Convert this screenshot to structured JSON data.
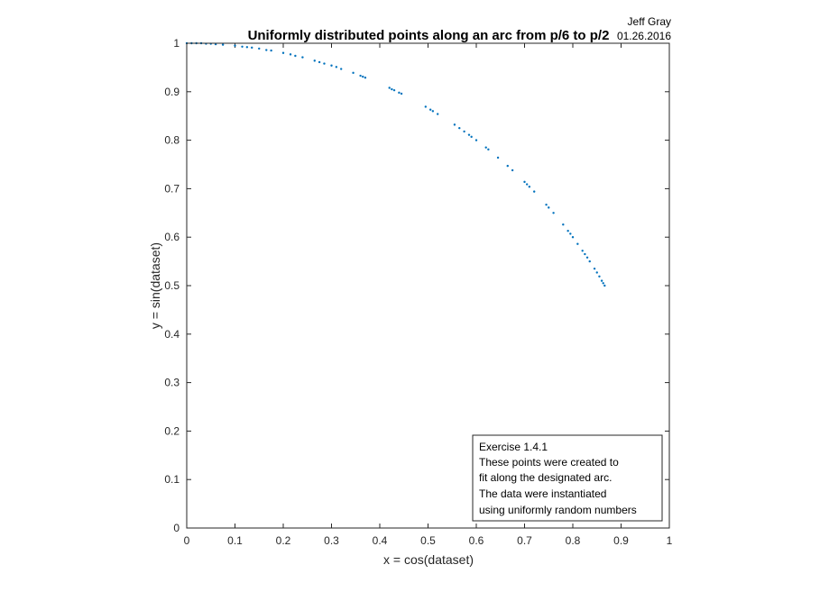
{
  "chart_data": {
    "type": "scatter",
    "title": "Uniformly distributed points along an arc from p/6 to p/2",
    "author": "Jeff Gray",
    "date": "01.26.2016",
    "xlabel": "x = cos(dataset)",
    "ylabel": "y = sin(dataset)",
    "xlim": [
      0,
      1
    ],
    "ylim": [
      0,
      1
    ],
    "xticks": [
      "0",
      "0.1",
      "0.2",
      "0.3",
      "0.4",
      "0.5",
      "0.6",
      "0.7",
      "0.8",
      "0.9",
      "1"
    ],
    "yticks": [
      "0",
      "0.1",
      "0.2",
      "0.3",
      "0.4",
      "0.5",
      "0.6",
      "0.7",
      "0.8",
      "0.9",
      "1"
    ],
    "grid": false,
    "marker_color": "#0072BD",
    "annotation_position": "bottom-right",
    "annotation": [
      "Exercise 1.4.1",
      "These points were created to",
      "fit along the designated arc.",
      "The data were instantiated",
      "using uniformly random numbers"
    ],
    "points": [
      {
        "x": 0.0,
        "y": 1.0
      },
      {
        "x": 0.01,
        "y": 1.0
      },
      {
        "x": 0.02,
        "y": 1.0
      },
      {
        "x": 0.03,
        "y": 1.0
      },
      {
        "x": 0.04,
        "y": 0.999
      },
      {
        "x": 0.05,
        "y": 0.999
      },
      {
        "x": 0.06,
        "y": 0.998
      },
      {
        "x": 0.075,
        "y": 0.997
      },
      {
        "x": 0.1,
        "y": 0.995
      },
      {
        "x": 0.115,
        "y": 0.993
      },
      {
        "x": 0.125,
        "y": 0.992
      },
      {
        "x": 0.135,
        "y": 0.991
      },
      {
        "x": 0.15,
        "y": 0.989
      },
      {
        "x": 0.165,
        "y": 0.986
      },
      {
        "x": 0.175,
        "y": 0.985
      },
      {
        "x": 0.2,
        "y": 0.98
      },
      {
        "x": 0.215,
        "y": 0.977
      },
      {
        "x": 0.225,
        "y": 0.974
      },
      {
        "x": 0.24,
        "y": 0.971
      },
      {
        "x": 0.265,
        "y": 0.964
      },
      {
        "x": 0.275,
        "y": 0.961
      },
      {
        "x": 0.285,
        "y": 0.958
      },
      {
        "x": 0.3,
        "y": 0.954
      },
      {
        "x": 0.31,
        "y": 0.951
      },
      {
        "x": 0.32,
        "y": 0.947
      },
      {
        "x": 0.345,
        "y": 0.939
      },
      {
        "x": 0.36,
        "y": 0.933
      },
      {
        "x": 0.365,
        "y": 0.931
      },
      {
        "x": 0.37,
        "y": 0.929
      },
      {
        "x": 0.42,
        "y": 0.908
      },
      {
        "x": 0.425,
        "y": 0.905
      },
      {
        "x": 0.43,
        "y": 0.903
      },
      {
        "x": 0.44,
        "y": 0.898
      },
      {
        "x": 0.445,
        "y": 0.896
      },
      {
        "x": 0.495,
        "y": 0.869
      },
      {
        "x": 0.505,
        "y": 0.863
      },
      {
        "x": 0.51,
        "y": 0.86
      },
      {
        "x": 0.52,
        "y": 0.854
      },
      {
        "x": 0.555,
        "y": 0.832
      },
      {
        "x": 0.565,
        "y": 0.825
      },
      {
        "x": 0.575,
        "y": 0.818
      },
      {
        "x": 0.585,
        "y": 0.811
      },
      {
        "x": 0.59,
        "y": 0.807
      },
      {
        "x": 0.6,
        "y": 0.8
      },
      {
        "x": 0.62,
        "y": 0.785
      },
      {
        "x": 0.625,
        "y": 0.781
      },
      {
        "x": 0.645,
        "y": 0.764
      },
      {
        "x": 0.665,
        "y": 0.747
      },
      {
        "x": 0.675,
        "y": 0.738
      },
      {
        "x": 0.7,
        "y": 0.714
      },
      {
        "x": 0.705,
        "y": 0.709
      },
      {
        "x": 0.71,
        "y": 0.704
      },
      {
        "x": 0.72,
        "y": 0.694
      },
      {
        "x": 0.745,
        "y": 0.667
      },
      {
        "x": 0.75,
        "y": 0.661
      },
      {
        "x": 0.76,
        "y": 0.65
      },
      {
        "x": 0.78,
        "y": 0.626
      },
      {
        "x": 0.79,
        "y": 0.613
      },
      {
        "x": 0.795,
        "y": 0.607
      },
      {
        "x": 0.8,
        "y": 0.6
      },
      {
        "x": 0.81,
        "y": 0.586
      },
      {
        "x": 0.82,
        "y": 0.572
      },
      {
        "x": 0.825,
        "y": 0.565
      },
      {
        "x": 0.83,
        "y": 0.558
      },
      {
        "x": 0.835,
        "y": 0.55
      },
      {
        "x": 0.845,
        "y": 0.535
      },
      {
        "x": 0.85,
        "y": 0.527
      },
      {
        "x": 0.855,
        "y": 0.519
      },
      {
        "x": 0.86,
        "y": 0.51
      },
      {
        "x": 0.863,
        "y": 0.505
      },
      {
        "x": 0.866,
        "y": 0.5
      }
    ]
  }
}
